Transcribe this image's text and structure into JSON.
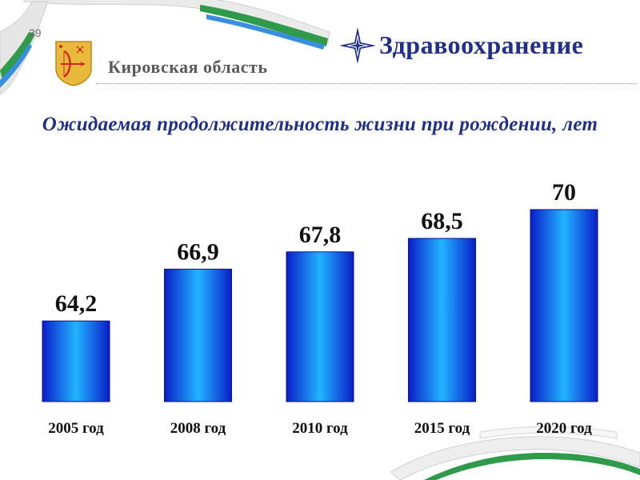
{
  "slide_number": "39",
  "region": "Кировская область",
  "section_title": "Здравоохранение",
  "colors": {
    "ribbon_white": "#f4f4f4",
    "ribbon_green": "#2e9a4a",
    "ribbon_blue": "#3a8ee0",
    "title_blue": "#1f2f8a",
    "bar_dark": "#0a1ec8",
    "bar_light": "#22b4ff",
    "coat_gold": "#e8b93a",
    "coat_red": "#d22a1e"
  },
  "icons": {
    "coat_of_arms": "kirov-coat-of-arms-icon",
    "star": "four-point-star-icon"
  },
  "chart_data": {
    "type": "bar",
    "title": "Ожидаемая продолжительность жизни при рождении, лет",
    "categories": [
      "2005 год",
      "2008 год",
      "2010 год",
      "2015 год",
      "2020 год"
    ],
    "values": [
      64.2,
      66.9,
      67.8,
      68.5,
      70
    ],
    "value_labels": [
      "64,2",
      "66,9",
      "67,8",
      "68,5",
      "70"
    ],
    "xlabel": "",
    "ylabel": "",
    "ylim": [
      60,
      71
    ],
    "grid": false,
    "legend": "none"
  }
}
